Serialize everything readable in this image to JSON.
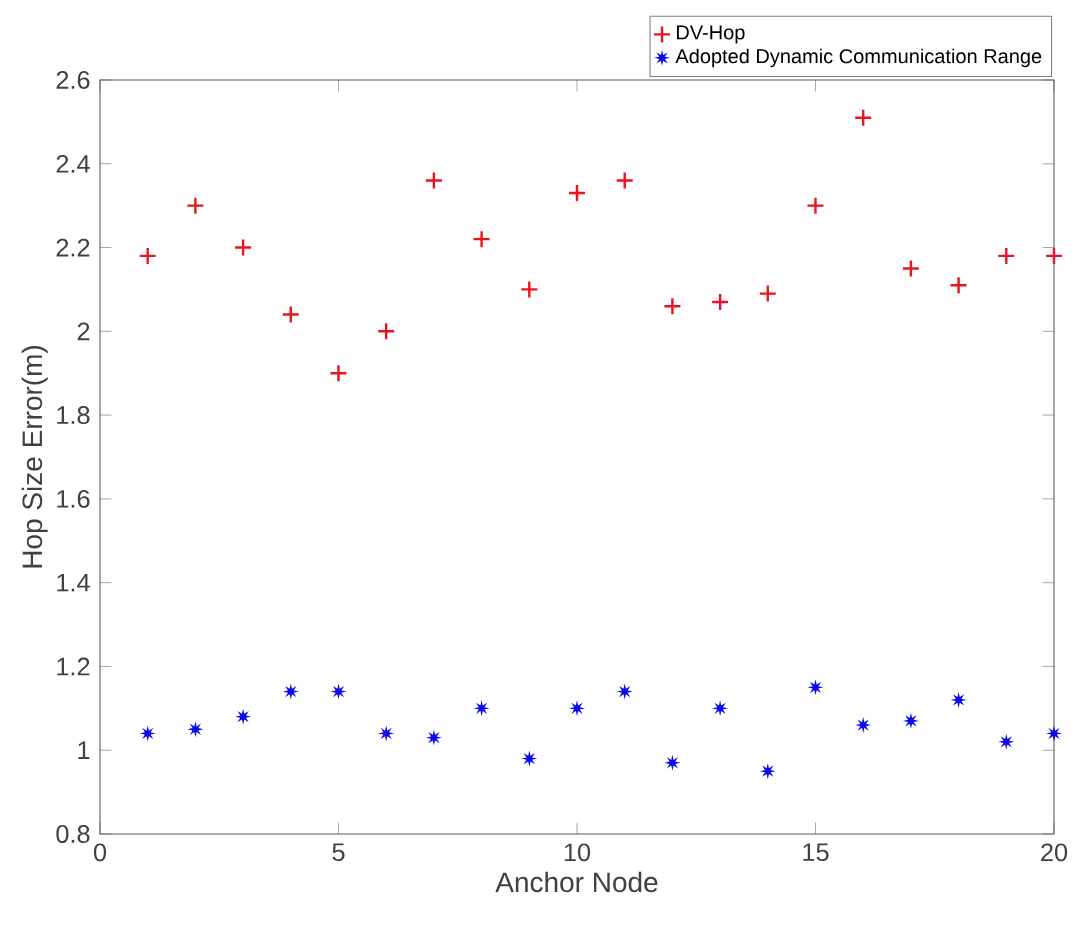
{
  "chart_data": {
    "type": "scatter",
    "xlabel": "Anchor Node",
    "ylabel": "Hop Size Error(m)",
    "x": [
      1,
      2,
      3,
      4,
      5,
      6,
      7,
      8,
      9,
      10,
      11,
      12,
      13,
      14,
      15,
      16,
      17,
      18,
      19,
      20
    ],
    "series": [
      {
        "name": "DV-Hop",
        "color": "#e8141e",
        "marker": "cross",
        "values": [
          2.18,
          2.3,
          2.2,
          2.04,
          1.9,
          2.0,
          2.36,
          2.22,
          2.1,
          2.33,
          2.36,
          2.06,
          2.07,
          2.09,
          2.3,
          2.51,
          2.15,
          2.11,
          2.18,
          2.18
        ]
      },
      {
        "name": "Adopted Dynamic Communication Range",
        "color": "#0a0ae6",
        "marker": "star",
        "values": [
          1.04,
          1.05,
          1.08,
          1.14,
          1.14,
          1.04,
          1.03,
          1.1,
          0.98,
          1.1,
          1.14,
          0.97,
          1.1,
          0.95,
          1.15,
          1.06,
          1.07,
          1.12,
          1.02,
          1.04
        ]
      }
    ],
    "xlim": [
      0,
      20
    ],
    "xticks": [
      0,
      5,
      10,
      15,
      20
    ],
    "ylim": [
      0.8,
      2.6
    ],
    "yticks": [
      0.8,
      1,
      1.2,
      1.4,
      1.6,
      1.8,
      2,
      2.2,
      2.4,
      2.6
    ],
    "grid": false,
    "legend": "top right"
  }
}
